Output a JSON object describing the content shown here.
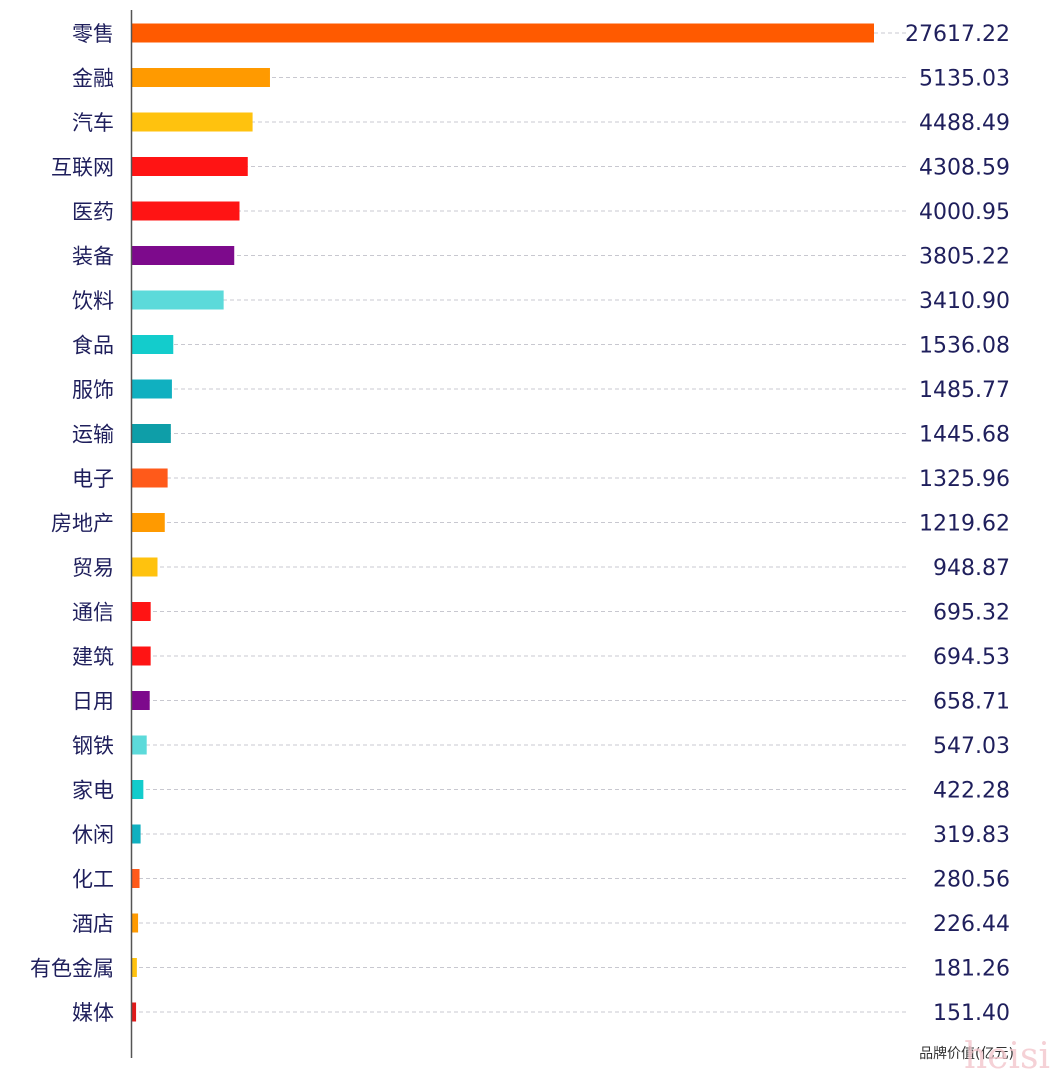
{
  "chart_data": {
    "type": "bar",
    "orientation": "horizontal",
    "categories": [
      "零售",
      "金融",
      "汽车",
      "互联网",
      "医药",
      "装备",
      "饮料",
      "食品",
      "服饰",
      "运输",
      "电子",
      "房地产",
      "贸易",
      "通信",
      "建筑",
      "日用",
      "钢铁",
      "家电",
      "休闲",
      "化工",
      "酒店",
      "有色金属",
      "媒体"
    ],
    "values": [
      27617.22,
      5135.03,
      4488.49,
      4308.59,
      4000.95,
      3805.22,
      3410.9,
      1536.08,
      1485.77,
      1445.68,
      1325.96,
      1219.62,
      948.87,
      695.32,
      694.53,
      658.71,
      547.03,
      422.28,
      319.83,
      280.56,
      226.44,
      181.26,
      151.4
    ],
    "value_labels": [
      "27617.22",
      "5135.03",
      "4488.49",
      "4308.59",
      "4000.95",
      "3805.22",
      "3410.90",
      "1536.08",
      "1485.77",
      "1445.68",
      "1325.96",
      "1219.62",
      "948.87",
      "695.32",
      "694.53",
      "658.71",
      "547.03",
      "422.28",
      "319.83",
      "280.56",
      "226.44",
      "181.26",
      "151.40"
    ],
    "colors": [
      "#ff5a00",
      "#ff9a00",
      "#ffc20e",
      "#ff1414",
      "#ff1414",
      "#7d0a8c",
      "#5cdada",
      "#13cccc",
      "#10b0c0",
      "#0e9ea8",
      "#ff5a1a",
      "#ff9a00",
      "#ffc20e",
      "#ff1414",
      "#ff1414",
      "#7d0a8c",
      "#5cdada",
      "#13cccc",
      "#10b0c0",
      "#ff5a1a",
      "#ff9a00",
      "#ffc20e",
      "#e01a1a"
    ],
    "xlabel": "品牌价值(亿元)",
    "ylabel": "",
    "grid": "dashed horizontal leader lines",
    "legend": "none"
  },
  "watermark": "heisi",
  "colors": {
    "text": "#1f1f5c",
    "axis": "#555555",
    "grid": "#c8c8d0"
  }
}
